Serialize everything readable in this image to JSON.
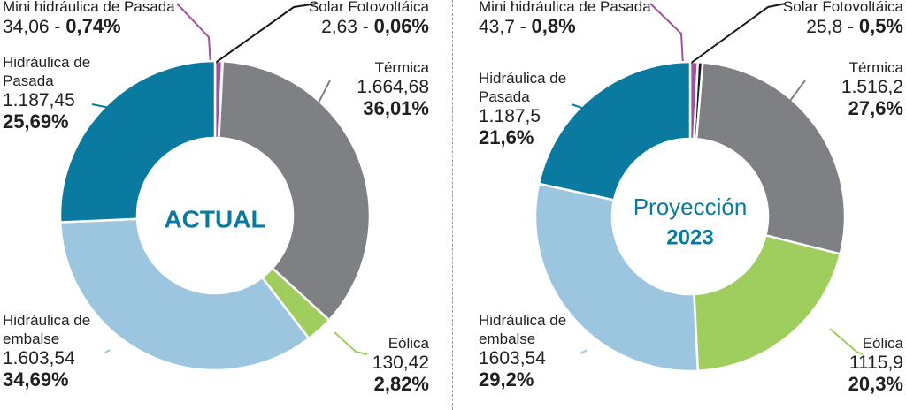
{
  "chart_data": [
    {
      "type": "pie",
      "center_text": [
        "ACTUAL"
      ],
      "slices": [
        {
          "name": "Mini hidráulica de Pasada",
          "value_text": "34,06",
          "pct_text": "0,74%",
          "value": 34.06,
          "pct": 0.74,
          "color": "#a0539b"
        },
        {
          "name": "Solar Fotovoltáica",
          "value_text": "2,63",
          "pct_text": "0,06%",
          "value": 2.63,
          "pct": 0.06,
          "color": "#1a1a1a"
        },
        {
          "name": "Térmica",
          "value_text": "1.664,68",
          "pct_text": "36,01%",
          "value": 1664.68,
          "pct": 36.01,
          "color": "#7f8083"
        },
        {
          "name": "Eólica",
          "value_text": "130,42",
          "pct_text": "2,82%",
          "value": 130.42,
          "pct": 2.82,
          "color": "#9fcd5e"
        },
        {
          "name": "Hidráulica de embalse",
          "value_text": "1.603,54",
          "pct_text": "34,69%",
          "value": 1603.54,
          "pct": 34.69,
          "color": "#9cc6df"
        },
        {
          "name": "Hidráulica de Pasada",
          "value_text": "1.187,45",
          "pct_text": "25,69%",
          "value": 1187.45,
          "pct": 25.69,
          "color": "#0a7aa1"
        }
      ]
    },
    {
      "type": "pie",
      "center_text": [
        "Proyección",
        "2023"
      ],
      "slices": [
        {
          "name": "Mini hidráulica de Pasada",
          "value_text": "43,7",
          "pct_text": "0,8%",
          "value": 43.7,
          "pct": 0.8,
          "color": "#a0539b"
        },
        {
          "name": "Solar Fotovoltáica",
          "value_text": "25,8",
          "pct_text": "0,5%",
          "value": 25.8,
          "pct": 0.5,
          "color": "#1a1a1a"
        },
        {
          "name": "Térmica",
          "value_text": "1.516,2",
          "pct_text": "27,6%",
          "value": 1516.2,
          "pct": 27.6,
          "color": "#7f8083"
        },
        {
          "name": "Eólica",
          "value_text": "1115,9",
          "pct_text": "20,3%",
          "value": 1115.9,
          "pct": 20.3,
          "color": "#9fcd5e"
        },
        {
          "name": "Hidráulica de embalse",
          "value_text": "1603,54",
          "pct_text": "29,2%",
          "value": 1603.54,
          "pct": 29.2,
          "color": "#9cc6df"
        },
        {
          "name": "Hidráulica de Pasada",
          "value_text": "1.187,5",
          "pct_text": "21,6%",
          "value": 1187.5,
          "pct": 21.6,
          "color": "#0a7aa1"
        }
      ]
    }
  ]
}
